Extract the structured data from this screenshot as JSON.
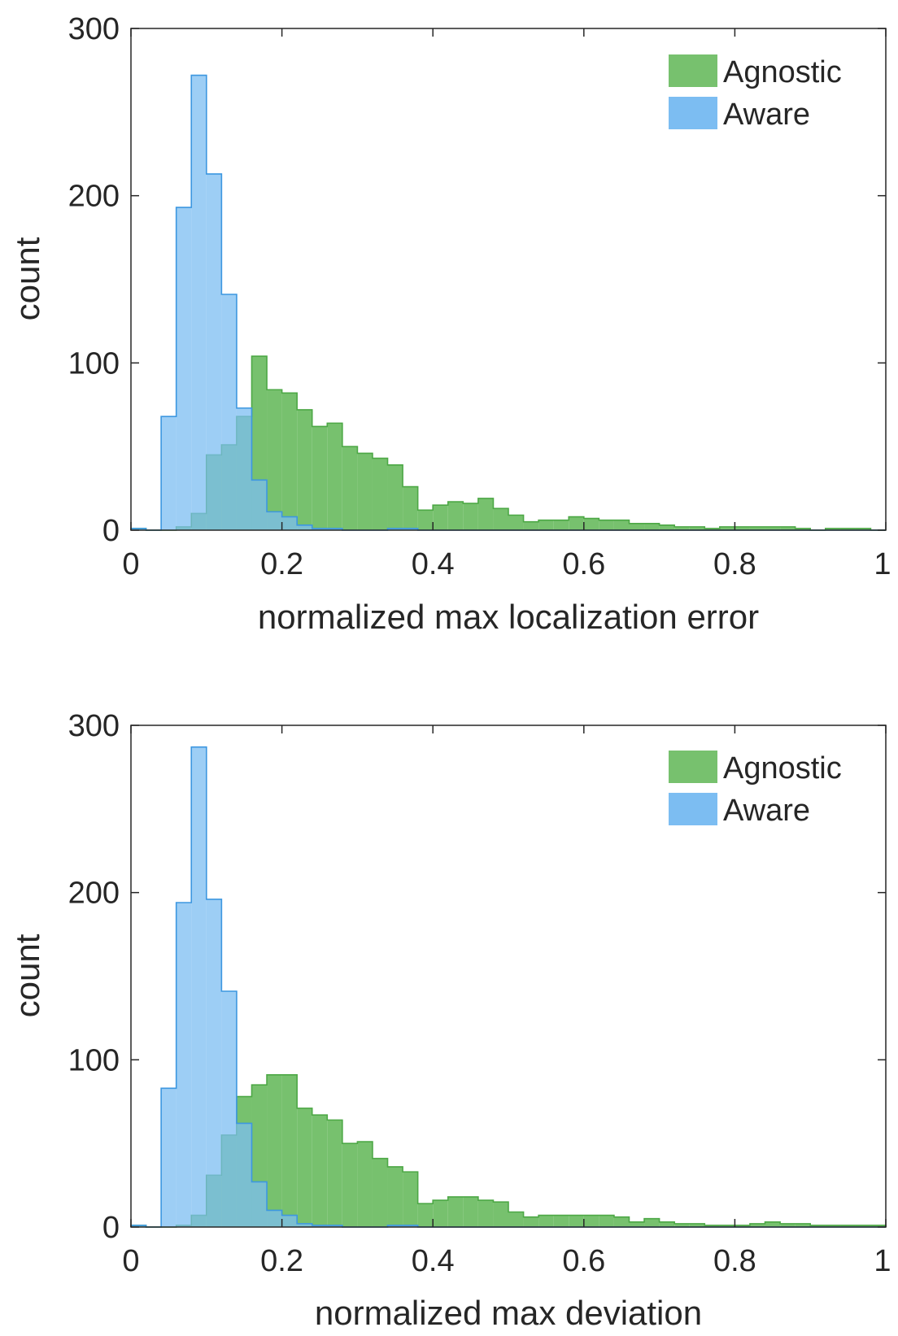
{
  "chart_data": [
    {
      "type": "histogram",
      "title": "",
      "xlabel": "normalized max localization error",
      "ylabel": "count",
      "xlim": [
        0,
        1
      ],
      "ylim": [
        0,
        300
      ],
      "xticks": [
        0,
        0.2,
        0.4,
        0.6,
        0.8,
        1
      ],
      "xtick_labels": [
        "0",
        "0.2",
        "0.4",
        "0.6",
        "0.8",
        "1"
      ],
      "yticks": [
        0,
        100,
        200,
        300
      ],
      "ytick_labels": [
        "0",
        "100",
        "200",
        "300"
      ],
      "bin_width": 0.02,
      "bin_start": 0,
      "grid": false,
      "legend_position": "top-right",
      "series": [
        {
          "name": "Agnostic",
          "color": "#77C16E",
          "edge_color": "#4DA846",
          "counts": [
            1,
            0,
            0,
            2,
            10,
            45,
            51,
            68,
            104,
            84,
            82,
            72,
            62,
            64,
            50,
            46,
            43,
            39,
            26,
            12,
            15,
            17,
            16,
            19,
            13,
            9,
            5,
            6,
            6,
            8,
            7,
            6,
            6,
            4,
            4,
            3,
            2,
            2,
            1,
            2,
            2,
            2,
            2,
            2,
            1,
            0,
            1,
            1,
            1,
            0
          ]
        },
        {
          "name": "Aware",
          "color": "#7CBDF2",
          "edge_color": "#3D97E0",
          "counts": [
            1,
            0,
            68,
            193,
            272,
            213,
            141,
            73,
            30,
            11,
            8,
            3,
            1,
            1,
            0,
            0,
            0,
            1,
            1,
            0,
            0,
            0,
            0,
            0,
            0,
            0,
            0,
            0,
            0,
            0,
            0,
            0,
            0,
            0,
            0,
            0,
            0,
            0,
            0,
            0,
            0,
            0,
            0,
            0,
            0,
            0,
            0,
            0,
            0,
            0
          ]
        }
      ]
    },
    {
      "type": "histogram",
      "title": "",
      "xlabel": "normalized max deviation",
      "ylabel": "count",
      "xlim": [
        0,
        1
      ],
      "ylim": [
        0,
        300
      ],
      "xticks": [
        0,
        0.2,
        0.4,
        0.6,
        0.8,
        1
      ],
      "xtick_labels": [
        "0",
        "0.2",
        "0.4",
        "0.6",
        "0.8",
        "1"
      ],
      "yticks": [
        0,
        100,
        200,
        300
      ],
      "ytick_labels": [
        "0",
        "100",
        "200",
        "300"
      ],
      "bin_width": 0.02,
      "bin_start": 0,
      "grid": false,
      "legend_position": "top-right",
      "series": [
        {
          "name": "Agnostic",
          "color": "#77C16E",
          "edge_color": "#4DA846",
          "counts": [
            1,
            0,
            0,
            1,
            7,
            31,
            55,
            78,
            85,
            91,
            91,
            71,
            67,
            64,
            50,
            51,
            41,
            36,
            33,
            14,
            16,
            18,
            18,
            16,
            15,
            9,
            6,
            7,
            7,
            7,
            7,
            7,
            6,
            3,
            5,
            3,
            2,
            2,
            1,
            1,
            1,
            2,
            3,
            2,
            2,
            1,
            1,
            1,
            1,
            1
          ]
        },
        {
          "name": "Aware",
          "color": "#7CBDF2",
          "edge_color": "#3D97E0",
          "counts": [
            1,
            0,
            83,
            194,
            287,
            196,
            141,
            62,
            27,
            10,
            7,
            2,
            1,
            1,
            0,
            0,
            0,
            1,
            1,
            0,
            0,
            0,
            0,
            0,
            0,
            0,
            0,
            0,
            0,
            0,
            0,
            0,
            0,
            0,
            0,
            0,
            0,
            0,
            0,
            0,
            0,
            0,
            0,
            0,
            0,
            0,
            0,
            0,
            0,
            0
          ]
        }
      ]
    }
  ]
}
